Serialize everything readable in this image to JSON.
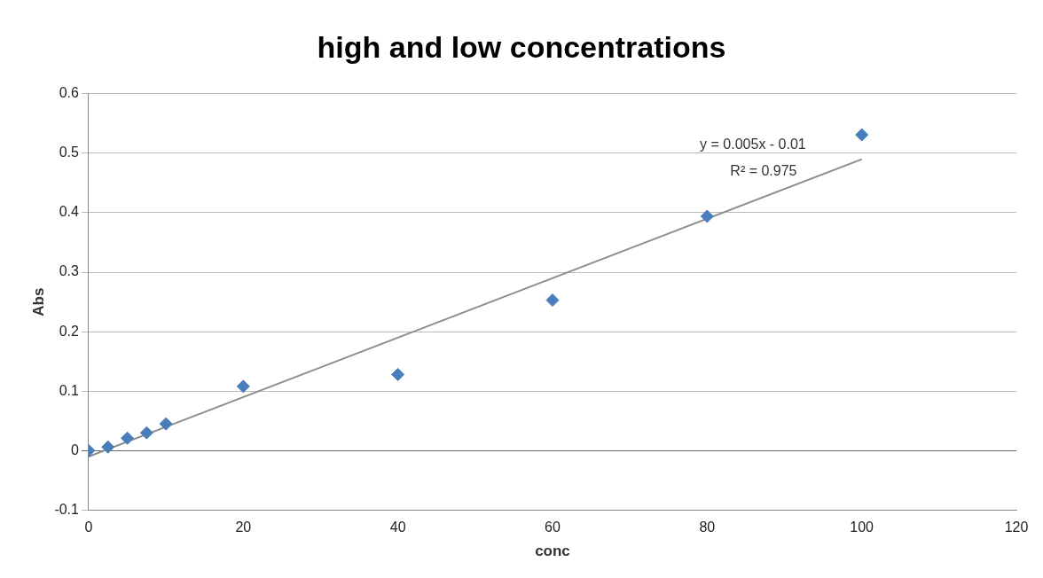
{
  "chart_data": {
    "type": "scatter",
    "title": "high and low concentrations",
    "xlabel": "conc",
    "ylabel": "Abs",
    "series": [
      {
        "color": "#4a7ebb",
        "marker": "diamond",
        "x": [
          0,
          2.5,
          5,
          7.5,
          10,
          20,
          40,
          60,
          80,
          100
        ],
        "values": [
          0,
          0.006,
          0.021,
          0.03,
          0.045,
          0.108,
          0.128,
          0.253,
          0.394,
          0.531
        ]
      },
      {
        "type": "line",
        "color": "#8c8c8c",
        "marker": "none",
        "x": [
          0,
          100
        ],
        "values": [
          -0.01,
          0.49
        ]
      }
    ],
    "xlim": [
      0,
      120
    ],
    "xticks": [
      0,
      20,
      40,
      60,
      80,
      100,
      120
    ],
    "ylim": [
      -0.1,
      0.6
    ],
    "yticks": [
      -0.1,
      0,
      0.1,
      0.2,
      0.3,
      0.4,
      0.5,
      0.6
    ],
    "grid": "y",
    "legend": false,
    "annotations": [
      "y = 0.005x - 0.01",
      "R² = 0.975"
    ]
  }
}
